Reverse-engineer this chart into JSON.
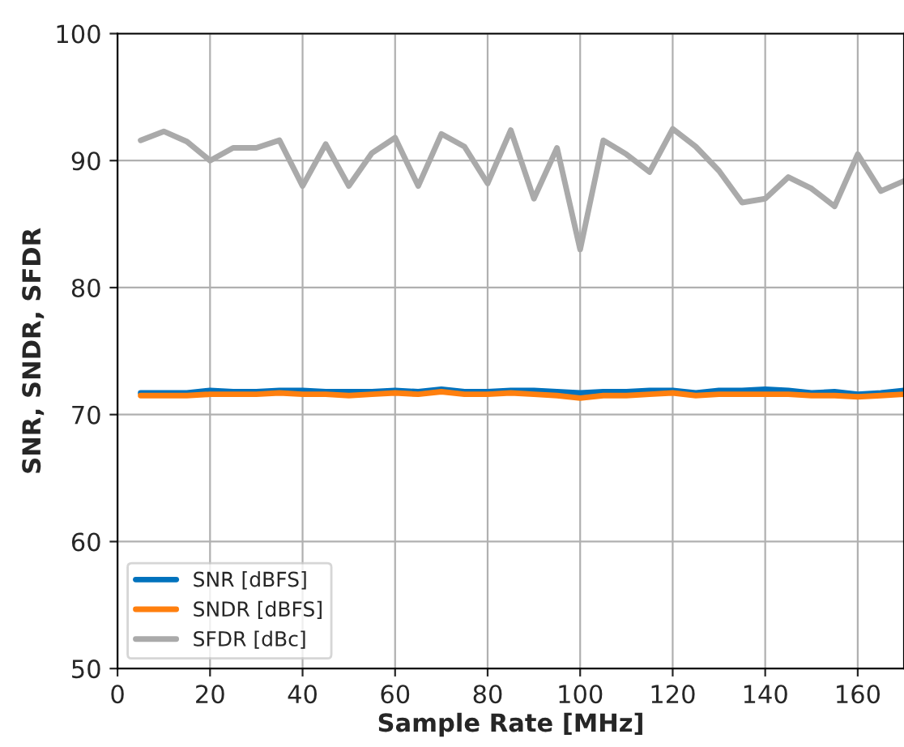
{
  "chart_data": {
    "type": "line",
    "xlabel": "Sample Rate [MHz]",
    "ylabel": "SNR, SNDR, SFDR",
    "x": [
      5,
      10,
      15,
      20,
      25,
      30,
      35,
      40,
      45,
      50,
      55,
      60,
      65,
      70,
      75,
      80,
      85,
      90,
      95,
      100,
      105,
      110,
      115,
      120,
      125,
      130,
      135,
      140,
      145,
      150,
      155,
      160,
      165,
      170
    ],
    "series": [
      {
        "name": "SNR [dBFS]",
        "color": "#0072bd",
        "values": [
          71.7,
          71.7,
          71.7,
          71.9,
          71.8,
          71.8,
          71.9,
          71.9,
          71.8,
          71.8,
          71.8,
          71.9,
          71.8,
          72.0,
          71.8,
          71.8,
          71.9,
          71.9,
          71.8,
          71.7,
          71.8,
          71.8,
          71.9,
          71.9,
          71.7,
          71.9,
          71.9,
          72.0,
          71.9,
          71.7,
          71.8,
          71.6,
          71.7,
          71.9
        ]
      },
      {
        "name": "SNDR [dBFS]",
        "color": "#ff7f0e",
        "values": [
          71.5,
          71.5,
          71.5,
          71.6,
          71.6,
          71.6,
          71.7,
          71.6,
          71.6,
          71.5,
          71.6,
          71.7,
          71.6,
          71.8,
          71.6,
          71.6,
          71.7,
          71.6,
          71.5,
          71.3,
          71.5,
          71.5,
          71.6,
          71.7,
          71.5,
          71.6,
          71.6,
          71.6,
          71.6,
          71.5,
          71.5,
          71.4,
          71.5,
          71.6
        ]
      },
      {
        "name": "SFDR [dBc]",
        "color": "#aaaaaa",
        "values": [
          91.6,
          92.3,
          91.5,
          90.0,
          91.0,
          91.0,
          91.6,
          88.0,
          91.3,
          88.0,
          90.6,
          91.8,
          88.0,
          92.1,
          91.1,
          88.2,
          92.4,
          87.0,
          91.0,
          83.0,
          91.6,
          90.5,
          89.1,
          92.5,
          91.1,
          89.2,
          86.7,
          87.0,
          88.7,
          87.8,
          86.4,
          90.5,
          87.6,
          88.4
        ]
      }
    ],
    "xlim": [
      0,
      170
    ],
    "xticks": [
      0,
      20,
      40,
      60,
      80,
      100,
      120,
      140,
      160
    ],
    "ylim": [
      50,
      100
    ],
    "yticks": [
      50,
      60,
      70,
      80,
      90,
      100
    ],
    "grid": true,
    "legend": "lower left",
    "marker": "none",
    "line_style": "solid"
  }
}
